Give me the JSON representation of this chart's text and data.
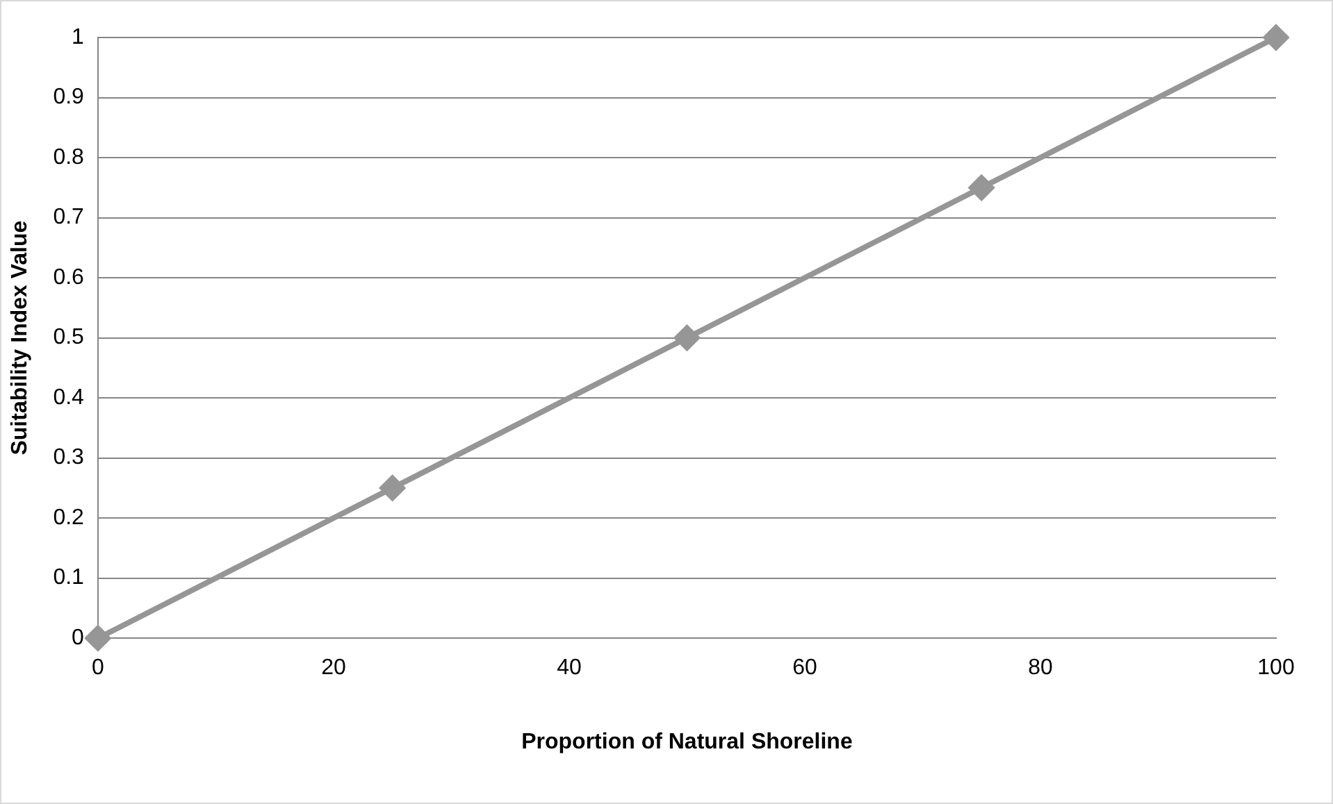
{
  "chart_data": {
    "type": "line",
    "xlabel": "Proportion of Natural Shoreline",
    "ylabel": "Suitability Index Value",
    "x": [
      0,
      25,
      50,
      75,
      100
    ],
    "series": [
      {
        "color": "#969696",
        "values": [
          0,
          0.25,
          0.5,
          0.75,
          1
        ]
      }
    ],
    "xlim": [
      0,
      100
    ],
    "xticks": [
      0,
      20,
      40,
      60,
      80,
      100
    ],
    "ylim": [
      0,
      1
    ],
    "yticks": [
      0,
      0.1,
      0.2,
      0.3,
      0.4,
      0.5,
      0.6,
      0.7,
      0.8,
      0.9,
      1
    ],
    "grid": "y",
    "legend": false,
    "marker": "diamond",
    "line_style": "solid"
  }
}
